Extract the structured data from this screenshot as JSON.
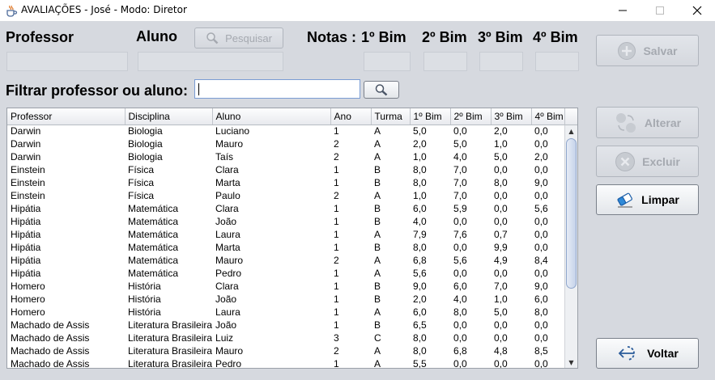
{
  "window": {
    "title": "AVALIAÇÕES - José - Modo: Diretor"
  },
  "form": {
    "professor_label": "Professor",
    "aluno_label": "Aluno",
    "search_label": "Pesquisar",
    "notas_label": "Notas :",
    "bim1_label": "1º Bim",
    "bim2_label": "2º Bim",
    "bim3_label": "3º Bim",
    "bim4_label": "4º Bim",
    "filter_label": "Filtrar professor ou aluno:",
    "filter_value": ""
  },
  "buttons": {
    "salvar": "Salvar",
    "alterar": "Alterar",
    "excluir": "Excluir",
    "limpar": "Limpar",
    "voltar": "Voltar"
  },
  "table": {
    "columns": [
      "Professor",
      "Disciplina",
      "Aluno",
      "Ano",
      "Turma",
      "1º Bim",
      "2º Bim",
      "3º Bim",
      "4º Bim"
    ],
    "rows": [
      [
        "Darwin",
        "Biologia",
        "Luciano",
        "1",
        "A",
        "5,0",
        "0,0",
        "2,0",
        "0,0"
      ],
      [
        "Darwin",
        "Biologia",
        "Mauro",
        "2",
        "A",
        "2,0",
        "5,0",
        "1,0",
        "0,0"
      ],
      [
        "Darwin",
        "Biologia",
        "Taís",
        "2",
        "A",
        "1,0",
        "4,0",
        "5,0",
        "2,0"
      ],
      [
        "Einstein",
        "Física",
        "Clara",
        "1",
        "B",
        "8,0",
        "7,0",
        "0,0",
        "0,0"
      ],
      [
        "Einstein",
        "Física",
        "Marta",
        "1",
        "B",
        "8,0",
        "7,0",
        "8,0",
        "9,0"
      ],
      [
        "Einstein",
        "Física",
        "Paulo",
        "2",
        "A",
        "1,0",
        "7,0",
        "0,0",
        "0,0"
      ],
      [
        "Hipátia",
        "Matemática",
        "Clara",
        "1",
        "B",
        "6,0",
        "5,9",
        "0,0",
        "5,6"
      ],
      [
        "Hipátia",
        "Matemática",
        "João",
        "1",
        "B",
        "4,0",
        "0,0",
        "0,0",
        "0,0"
      ],
      [
        "Hipátia",
        "Matemática",
        "Laura",
        "1",
        "A",
        "7,9",
        "7,6",
        "0,7",
        "0,0"
      ],
      [
        "Hipátia",
        "Matemática",
        "Marta",
        "1",
        "B",
        "8,0",
        "0,0",
        "9,9",
        "0,0"
      ],
      [
        "Hipátia",
        "Matemática",
        "Mauro",
        "2",
        "A",
        "6,8",
        "5,6",
        "4,9",
        "8,4"
      ],
      [
        "Hipátia",
        "Matemática",
        "Pedro",
        "1",
        "A",
        "5,6",
        "0,0",
        "0,0",
        "0,0"
      ],
      [
        "Homero",
        "História",
        "Clara",
        "1",
        "B",
        "9,0",
        "6,0",
        "7,0",
        "9,0"
      ],
      [
        "Homero",
        "História",
        "João",
        "1",
        "B",
        "2,0",
        "4,0",
        "1,0",
        "6,0"
      ],
      [
        "Homero",
        "História",
        "Laura",
        "1",
        "A",
        "6,0",
        "8,0",
        "5,0",
        "8,0"
      ],
      [
        "Machado de Assis",
        "Literatura Brasileira",
        "João",
        "1",
        "B",
        "6,5",
        "0,0",
        "0,0",
        "0,0"
      ],
      [
        "Machado de Assis",
        "Literatura Brasileira",
        "Luiz",
        "3",
        "C",
        "8,0",
        "0,0",
        "0,0",
        "0,0"
      ],
      [
        "Machado de Assis",
        "Literatura Brasileira",
        "Mauro",
        "2",
        "A",
        "8,0",
        "6,8",
        "4,8",
        "8,5"
      ],
      [
        "Machado de Assis",
        "Literatura Brasileira",
        "Pedro",
        "1",
        "A",
        "5,5",
        "0,0",
        "0,0",
        "0,0"
      ]
    ]
  },
  "colors": {
    "background": "#d6d9df",
    "disabled_text": "#a5a9b0",
    "focus_border": "#7a9cd3"
  },
  "icons": {
    "app": "java-cup-icon",
    "search": "magnifier-icon",
    "salvar": "plus-circle-icon",
    "alterar": "swap-circles-icon",
    "excluir": "x-circle-icon",
    "limpar": "eraser-icon",
    "voltar": "arrow-back-icon"
  }
}
